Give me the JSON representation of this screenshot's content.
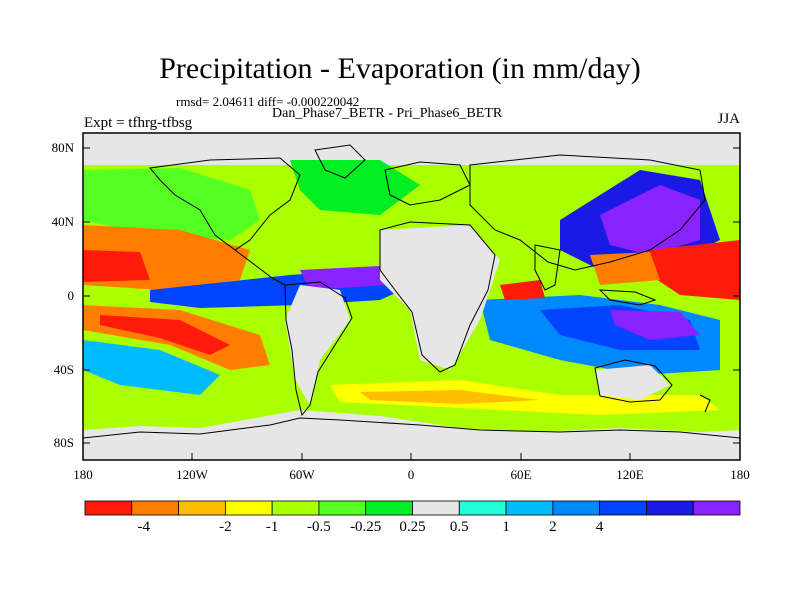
{
  "header": {
    "title": "Precipitation - Evaporation (in mm/day)",
    "stats": "rmsd= 2.04611 diff= -0.000220042",
    "subtitle": "Dan_Phase7_BETR - Pri_Phase6_BETR",
    "experiment": "Expt = tfhrg-tfbsg",
    "season": "JJA"
  },
  "map": {
    "lat_ticks": [
      "80N",
      "40N",
      "0",
      "40S",
      "80S"
    ],
    "lon_ticks": [
      "180",
      "120W",
      "60W",
      "0",
      "60E",
      "120E",
      "180"
    ]
  },
  "colorbar": {
    "colors": [
      "#ff1a0a",
      "#ff7d00",
      "#ffbf00",
      "#ffff00",
      "#aaff00",
      "#55ff22",
      "#00ee22",
      "#e6e6e6",
      "#22ffdd",
      "#00bbff",
      "#0088ff",
      "#0044ff",
      "#1a1ae6",
      "#8822ff"
    ],
    "labels": [
      "-4",
      "-2",
      "-1",
      "-0.5",
      "-0.25",
      "0.25",
      "0.5",
      "1",
      "2",
      "4"
    ]
  },
  "colors": {
    "land": "#e6e6e6",
    "coast": "#000000"
  }
}
